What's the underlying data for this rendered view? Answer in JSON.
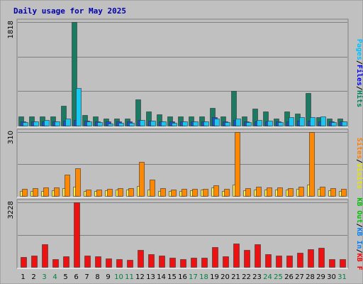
{
  "chart_data": {
    "type": "bar",
    "title": "Daily usage for May 2025",
    "categories": [
      "1",
      "2",
      "3",
      "4",
      "5",
      "6",
      "7",
      "8",
      "9",
      "10",
      "11",
      "12",
      "13",
      "14",
      "15",
      "16",
      "17",
      "18",
      "19",
      "20",
      "21",
      "22",
      "23",
      "24",
      "25",
      "26",
      "27",
      "28",
      "29",
      "30",
      "31"
    ],
    "weekend_days": [
      "3",
      "4",
      "10",
      "11",
      "17",
      "18",
      "24",
      "25",
      "31"
    ],
    "grid": true,
    "panels": [
      {
        "id": "hits-files-pages",
        "ymax_label": "1818",
        "ylim": [
          0,
          1818
        ],
        "legend": [
          {
            "text": "Hits",
            "color": "#00805c"
          },
          {
            "text": "/",
            "color": "#000000"
          },
          {
            "text": "Files",
            "color": "#0000ff"
          },
          {
            "text": "/",
            "color": "#000000"
          },
          {
            "text": "Pages",
            "color": "#00c0ff"
          }
        ],
        "series": [
          {
            "name": "Hits",
            "color": "#1b7a62",
            "values": [
              163,
              160,
              163,
              160,
              350,
              1818,
              190,
              160,
              130,
              130,
              120,
              460,
              250,
              195,
              160,
              160,
              160,
              160,
              310,
              160,
              610,
              160,
              300,
              250,
              130,
              250,
              210,
              570,
              155,
              130,
              120
            ]
          },
          {
            "name": "Files",
            "color": "#1f4fd8",
            "values": [
              70,
              75,
              80,
              75,
              90,
              100,
              90,
              80,
              70,
              75,
              75,
              95,
              85,
              80,
              70,
              75,
              75,
              80,
              155,
              80,
              100,
              75,
              80,
              80,
              75,
              80,
              85,
              90,
              80,
              75,
              70
            ]
          },
          {
            "name": "Pages",
            "color": "#19c8f0",
            "values": [
              60,
              80,
              95,
              80,
              120,
              655,
              75,
              60,
              40,
              55,
              45,
              100,
              90,
              80,
              55,
              70,
              70,
              70,
              120,
              65,
              120,
              65,
              100,
              85,
              60,
              155,
              145,
              150,
              160,
              65,
              75
            ]
          }
        ]
      },
      {
        "id": "visits-sites",
        "ymax_label": "310",
        "ylim": [
          0,
          310
        ],
        "legend": [
          {
            "text": "Visits",
            "color": "#e6e600"
          },
          {
            "text": "/",
            "color": "#000000"
          },
          {
            "text": "Sites",
            "color": "#ff8000"
          }
        ],
        "series": [
          {
            "name": "Visits",
            "color": "#ffee44",
            "values": [
              25,
              25,
              25,
              28,
              38,
              45,
              23,
              25,
              28,
              30,
              30,
              48,
              30,
              25,
              25,
              25,
              28,
              30,
              43,
              25,
              55,
              28,
              30,
              30,
              32,
              30,
              33,
              55,
              33,
              28,
              25
            ]
          },
          {
            "name": "Sites",
            "color": "#ff8800",
            "values": [
              33,
              38,
              43,
              40,
              105,
              133,
              30,
              30,
              35,
              38,
              38,
              165,
              78,
              38,
              32,
              35,
              33,
              35,
              50,
              33,
              310,
              38,
              45,
              43,
              42,
              38,
              45,
              310,
              45,
              38,
              35
            ]
          }
        ]
      },
      {
        "id": "kb",
        "ymax_label": "3228",
        "ylim": [
          0,
          3228
        ],
        "legend": [
          {
            "text": "KB F",
            "color": "#ff0000"
          },
          {
            "text": "/",
            "color": "#000000"
          },
          {
            "text": "KB In",
            "color": "#0080ff"
          },
          {
            "text": "/",
            "color": "#000000"
          },
          {
            "text": "KB Out",
            "color": "#00c000"
          }
        ],
        "series": [
          {
            "name": "KB F",
            "color": "#ee1111",
            "values": [
              510,
              560,
              1150,
              380,
              540,
              3228,
              580,
              520,
              430,
              400,
              340,
              840,
              640,
              570,
              450,
              400,
              450,
              450,
              1000,
              530,
              1180,
              850,
              1150,
              650,
              550,
              570,
              700,
              900,
              950,
              400,
              400
            ]
          }
        ]
      }
    ]
  }
}
